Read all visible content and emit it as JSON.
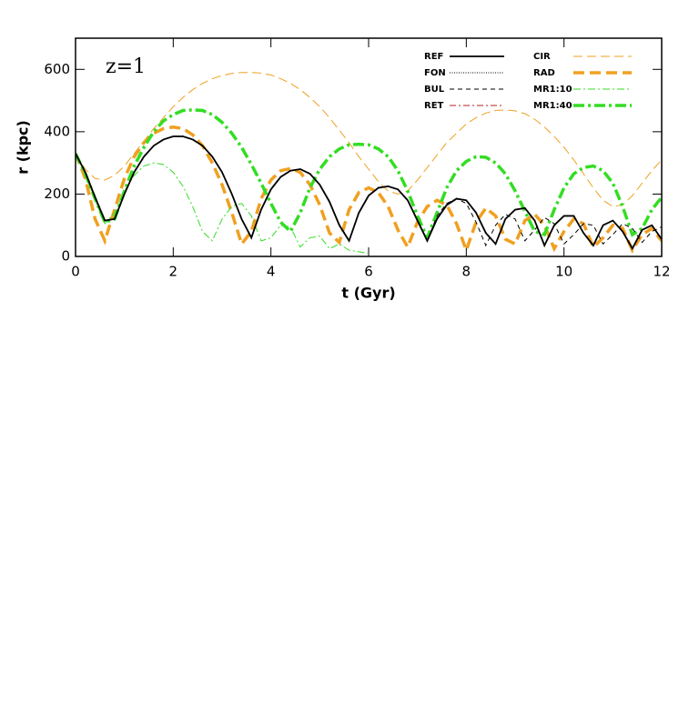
{
  "chart_data": {
    "type": "line",
    "annotation": "z=1",
    "xlabel": "t (Gyr)",
    "ylabel": "r (kpc)",
    "xlim": [
      0,
      12
    ],
    "ylim": [
      0,
      700
    ],
    "xticks": [
      0,
      2,
      4,
      6,
      8,
      10,
      12
    ],
    "yticks": [
      0,
      200,
      400,
      600
    ],
    "x": [
      0,
      0.2,
      0.4,
      0.6,
      0.8,
      1,
      1.2,
      1.4,
      1.6,
      1.8,
      2,
      2.2,
      2.4,
      2.6,
      2.8,
      3,
      3.2,
      3.4,
      3.6,
      3.8,
      4,
      4.2,
      4.4,
      4.6,
      4.8,
      5,
      5.2,
      5.4,
      5.6,
      5.8,
      6,
      6.2,
      6.4,
      6.6,
      6.8,
      7,
      7.2,
      7.4,
      7.6,
      7.8,
      8,
      8.2,
      8.4,
      8.6,
      8.8,
      9,
      9.2,
      9.4,
      9.6,
      9.8,
      10,
      10.2,
      10.4,
      10.6,
      10.8,
      11,
      11.2,
      11.4,
      11.6,
      11.8,
      12
    ],
    "series": [
      {
        "name": "REF",
        "color": "#000000",
        "dash": "",
        "linewidth": 1.8,
        "values": [
          330,
          270,
          190,
          115,
          120,
          200,
          270,
          320,
          355,
          375,
          385,
          385,
          375,
          355,
          320,
          270,
          200,
          120,
          60,
          150,
          215,
          255,
          275,
          280,
          265,
          230,
          175,
          100,
          50,
          140,
          195,
          220,
          225,
          215,
          180,
          115,
          50,
          120,
          165,
          185,
          180,
          140,
          75,
          40,
          120,
          150,
          155,
          115,
          35,
          100,
          130,
          130,
          75,
          35,
          100,
          115,
          80,
          25,
          85,
          100,
          55
        ]
      },
      {
        "name": "FON",
        "color": "#000000",
        "dash": "1,1.5",
        "linewidth": 1,
        "values": [
          330,
          270,
          190,
          115,
          122,
          202,
          272,
          322,
          356,
          376,
          386,
          386,
          376,
          356,
          322,
          272,
          202,
          122,
          62,
          152,
          217,
          256,
          276,
          281,
          266,
          232,
          178,
          104,
          52,
          142,
          197,
          222,
          226,
          216,
          182,
          118,
          54,
          124,
          168,
          187,
          181,
          142,
          78,
          42,
          122,
          151,
          156,
          117,
          38,
          102,
          131,
          131,
          77,
          37,
          101,
          116,
          82,
          28,
          86,
          101,
          57
        ]
      },
      {
        "name": "BUL",
        "color": "#000000",
        "dash": "5,4",
        "linewidth": 1,
        "values": [
          330,
          270,
          190,
          115,
          120,
          200,
          270,
          320,
          355,
          375,
          385,
          385,
          375,
          355,
          320,
          270,
          200,
          120,
          60,
          150,
          215,
          255,
          275,
          280,
          265,
          230,
          175,
          100,
          50,
          140,
          195,
          220,
          225,
          215,
          180,
          115,
          50,
          130,
          170,
          185,
          170,
          110,
          35,
          100,
          135,
          120,
          50,
          85,
          125,
          105,
          40,
          70,
          105,
          100,
          40,
          70,
          105,
          90,
          45,
          80,
          95
        ]
      },
      {
        "name": "RET",
        "color": "#b22222",
        "dash": "7,3,2,3",
        "linewidth": 1,
        "values": [
          330,
          270,
          190,
          115,
          120,
          200,
          270,
          320,
          355,
          375,
          385,
          385,
          375,
          355,
          320,
          270,
          200,
          120,
          60,
          150,
          215,
          255,
          275,
          280,
          265,
          230,
          175,
          100,
          50,
          140,
          195,
          220,
          225,
          215,
          180,
          115,
          50,
          120,
          165,
          185,
          180,
          140,
          75,
          40,
          120,
          150,
          155,
          115,
          35,
          100,
          130,
          130,
          75,
          35,
          100,
          115,
          80,
          25,
          85,
          100,
          55
        ]
      },
      {
        "name": "CIR",
        "color": "#f0a020",
        "dash": "10,5",
        "linewidth": 1,
        "values": [
          330,
          280,
          250,
          245,
          260,
          290,
          330,
          370,
          410,
          445,
          480,
          510,
          535,
          555,
          570,
          580,
          587,
          590,
          590,
          588,
          582,
          570,
          555,
          535,
          510,
          480,
          445,
          405,
          365,
          320,
          280,
          240,
          210,
          200,
          210,
          245,
          285,
          325,
          365,
          395,
          425,
          445,
          460,
          468,
          470,
          467,
          458,
          440,
          415,
          385,
          350,
          310,
          265,
          220,
          180,
          160,
          165,
          195,
          235,
          275,
          310
        ]
      },
      {
        "name": "RAD",
        "color": "#f0a020",
        "dash": "12,6",
        "linewidth": 3.5,
        "values": [
          330,
          250,
          120,
          50,
          150,
          250,
          320,
          365,
          395,
          410,
          415,
          410,
          390,
          355,
          300,
          230,
          140,
          40,
          80,
          185,
          245,
          275,
          282,
          270,
          230,
          165,
          75,
          45,
          150,
          205,
          220,
          205,
          160,
          85,
          30,
          110,
          160,
          180,
          165,
          105,
          20,
          110,
          155,
          130,
          55,
          40,
          115,
          135,
          100,
          25,
          80,
          120,
          105,
          30,
          60,
          100,
          90,
          20,
          70,
          90,
          50
        ]
      },
      {
        "name": "MR1:10",
        "color": "#33dd22",
        "dash": "8,3,2,3",
        "linewidth": 1,
        "values": [
          330,
          260,
          180,
          105,
          140,
          210,
          260,
          290,
          300,
          295,
          270,
          225,
          160,
          80,
          50,
          120,
          160,
          170,
          130,
          50,
          60,
          100,
          95,
          30,
          60,
          65,
          25,
          40,
          20,
          15,
          10,
          null,
          null,
          null,
          null,
          null,
          null,
          null,
          null,
          null,
          null,
          null,
          null,
          null,
          null,
          null,
          null,
          null,
          null,
          null,
          null,
          null,
          null,
          null,
          null,
          null,
          null,
          null,
          null,
          null,
          null
        ]
      },
      {
        "name": "MR1:40",
        "color": "#33dd22",
        "dash": "12,4,3,4",
        "linewidth": 3.5,
        "values": [
          330,
          265,
          185,
          110,
          120,
          210,
          290,
          350,
          400,
          435,
          455,
          468,
          470,
          468,
          455,
          430,
          395,
          350,
          295,
          235,
          170,
          110,
          80,
          140,
          220,
          280,
          320,
          345,
          358,
          360,
          358,
          345,
          320,
          275,
          210,
          130,
          60,
          140,
          220,
          275,
          305,
          320,
          318,
          300,
          265,
          210,
          145,
          80,
          70,
          150,
          220,
          265,
          285,
          290,
          275,
          235,
          160,
          70,
          90,
          150,
          190
        ]
      }
    ]
  }
}
